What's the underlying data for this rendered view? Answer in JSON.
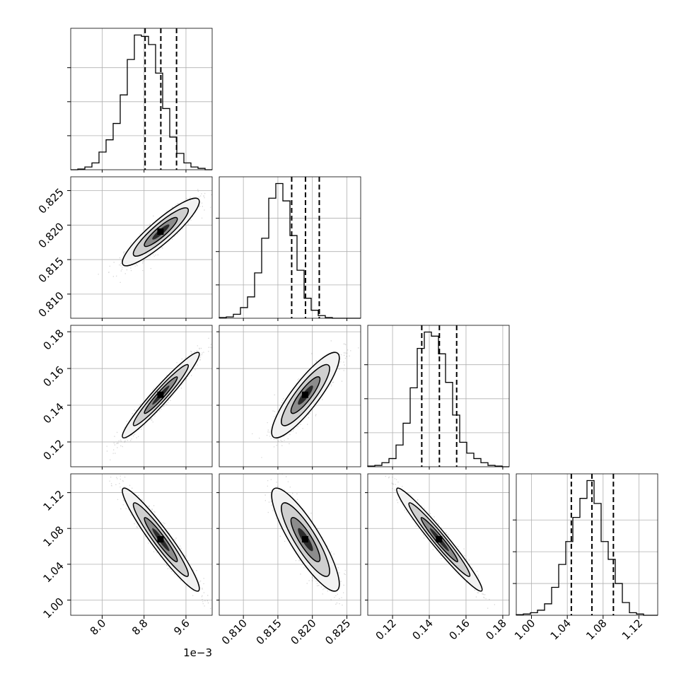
{
  "chart_data": {
    "type": "corner",
    "grid": true,
    "parameters": [
      {
        "index": 0,
        "range": [
          7.4,
          10.1
        ],
        "scale_offset": "1e−3",
        "ticks": [
          8.0,
          8.8,
          9.6
        ],
        "tick_labels": [
          "8.0",
          "8.8",
          "9.6"
        ],
        "quantiles": [
          8.82,
          9.12,
          9.42
        ]
      },
      {
        "index": 1,
        "range": [
          0.8065,
          0.827
        ],
        "ticks": [
          0.81,
          0.815,
          0.82,
          0.825
        ],
        "tick_labels": [
          "0.810",
          "0.815",
          "0.820",
          "0.825"
        ],
        "quantiles": [
          0.817,
          0.819,
          0.821
        ]
      },
      {
        "index": 2,
        "range": [
          0.1065,
          0.1835
        ],
        "ticks": [
          0.12,
          0.14,
          0.16,
          0.18
        ],
        "tick_labels": [
          "0.12",
          "0.14",
          "0.16",
          "0.18"
        ],
        "quantiles": [
          0.1359,
          0.1455,
          0.1549
        ]
      },
      {
        "index": 3,
        "range": [
          0.983,
          1.141
        ],
        "ticks": [
          1.0,
          1.04,
          1.08,
          1.12
        ],
        "tick_labels": [
          "1.00",
          "1.04",
          "1.08",
          "1.12"
        ],
        "quantiles": [
          1.0445,
          1.0675,
          1.0915
        ]
      }
    ],
    "histograms": [
      {
        "param": 0,
        "bins": 20,
        "values": [
          0.0,
          0.5,
          2,
          5,
          13,
          22,
          34,
          55,
          81,
          99,
          98,
          92,
          71,
          45,
          24,
          12,
          5,
          2,
          1,
          0
        ],
        "quantile_dashes": true
      },
      {
        "param": 1,
        "bins": 20,
        "values": [
          0.5,
          1,
          3,
          8,
          16,
          34,
          60,
          90,
          101,
          88,
          62,
          36,
          15,
          6,
          2,
          0.5,
          0,
          0,
          0,
          0
        ],
        "quantile_dashes": true
      },
      {
        "param": 2,
        "bins": 20,
        "values": [
          0.5,
          1,
          3,
          6,
          16,
          32,
          58,
          87,
          99,
          96,
          83,
          62,
          38,
          18,
          10,
          6,
          3,
          1,
          0.5,
          0
        ],
        "quantile_dashes": true
      },
      {
        "param": 3,
        "bins": 20,
        "values": [
          0.5,
          1,
          2,
          4,
          9,
          22,
          40,
          58,
          77,
          92,
          106,
          88,
          58,
          44,
          25,
          10,
          2,
          1,
          0,
          0
        ],
        "quantile_dashes": true
      }
    ],
    "scatter_panels": [
      {
        "x": 0,
        "y": 1,
        "mean": [
          9.12,
          0.819
        ],
        "sd": [
          0.3,
          0.002
        ],
        "rho": 0.9
      },
      {
        "x": 0,
        "y": 2,
        "mean": [
          9.12,
          0.1455
        ],
        "sd": [
          0.3,
          0.0095
        ],
        "rho": 0.96
      },
      {
        "x": 1,
        "y": 2,
        "mean": [
          0.819,
          0.1455
        ],
        "sd": [
          0.002,
          0.0095
        ],
        "rho": 0.87
      },
      {
        "x": 0,
        "y": 3,
        "mean": [
          9.12,
          1.0675
        ],
        "sd": [
          0.3,
          0.0235
        ],
        "rho": -0.95
      },
      {
        "x": 1,
        "y": 3,
        "mean": [
          0.819,
          1.0675
        ],
        "sd": [
          0.002,
          0.0235
        ],
        "rho": -0.86
      },
      {
        "x": 2,
        "y": 3,
        "mean": [
          0.1455,
          1.0675
        ],
        "sd": [
          0.0095,
          0.0235
        ],
        "rho": -0.97
      }
    ]
  }
}
